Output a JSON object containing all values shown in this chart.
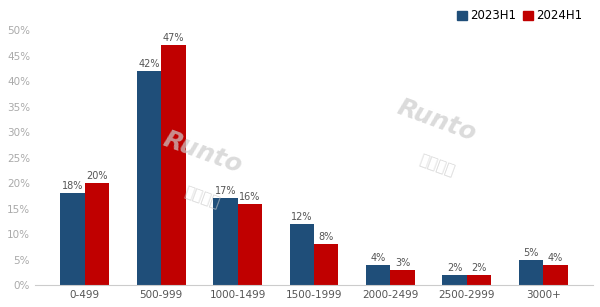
{
  "categories": [
    "0-499",
    "500-999",
    "1000-1499",
    "1500-1999",
    "2000-2499",
    "2500-2999",
    "3000+"
  ],
  "series": {
    "2023H1": [
      18,
      42,
      17,
      12,
      4,
      2,
      5
    ],
    "2024H1": [
      20,
      47,
      16,
      8,
      3,
      2,
      4
    ]
  },
  "colors": {
    "2023H1": "#1f4e79",
    "2024H1": "#c00000"
  },
  "ylim": [
    0,
    52
  ],
  "yticks": [
    0,
    5,
    10,
    15,
    20,
    25,
    30,
    35,
    40,
    45,
    50
  ],
  "legend_labels": [
    "2023H1",
    "2024H1"
  ],
  "bar_width": 0.32,
  "background_color": "#ffffff",
  "watermark1_text": "Runto",
  "watermark2_text": "洛图科技",
  "watermark1b_text": "Runto",
  "watermark2b_text": "洛图科技",
  "label_fontsize": 7.0,
  "axis_fontsize": 7.5,
  "legend_fontsize": 8.5,
  "ytick_color": "#aaaaaa",
  "xtick_color": "#555555",
  "spine_color": "#cccccc"
}
